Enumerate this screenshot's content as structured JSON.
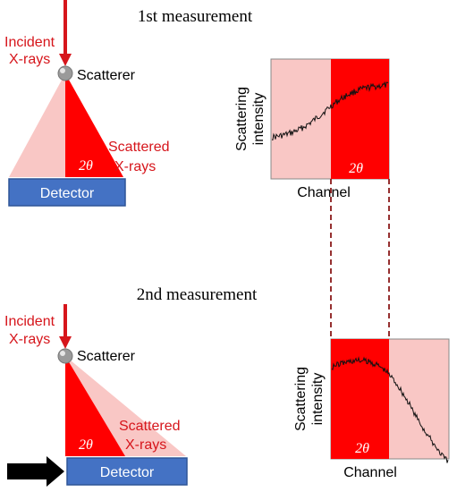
{
  "panels": [
    {
      "title": "1st measurement",
      "incident_label": [
        "Incident",
        "X-rays"
      ],
      "scatterer_label": "Scatterer",
      "scattered_label": [
        "Scattered",
        "X-rays"
      ],
      "angle_label": "2θ",
      "detector_label": "Detector",
      "plot": {
        "ylabel": [
          "Scattering",
          "intensity"
        ],
        "xlabel": "Channel",
        "angle_label": "2θ"
      },
      "detector_shifted": false
    },
    {
      "title": "2nd measurement",
      "incident_label": [
        "Incident",
        "X-rays"
      ],
      "scatterer_label": "Scatterer",
      "scattered_label": [
        "Scattered",
        "X-rays"
      ],
      "angle_label": "2θ",
      "detector_label": "Detector",
      "plot": {
        "ylabel": [
          "Scattering",
          "intensity"
        ],
        "xlabel": "Channel",
        "angle_label": "2θ"
      },
      "detector_shifted": true
    }
  ],
  "colors": {
    "beam": "#d6151b",
    "cone": "#ff0000",
    "cone_light": "#f9c7c5",
    "detector": "#4472c4",
    "detector_border": "#2f5597",
    "text_red": "#d6151b",
    "dashed": "#8b1a1a",
    "trace": "#111111",
    "arrow": "#000000"
  },
  "icons": {
    "scatterer": "sphere-icon",
    "shift_arrow": "arrow-right-icon"
  }
}
